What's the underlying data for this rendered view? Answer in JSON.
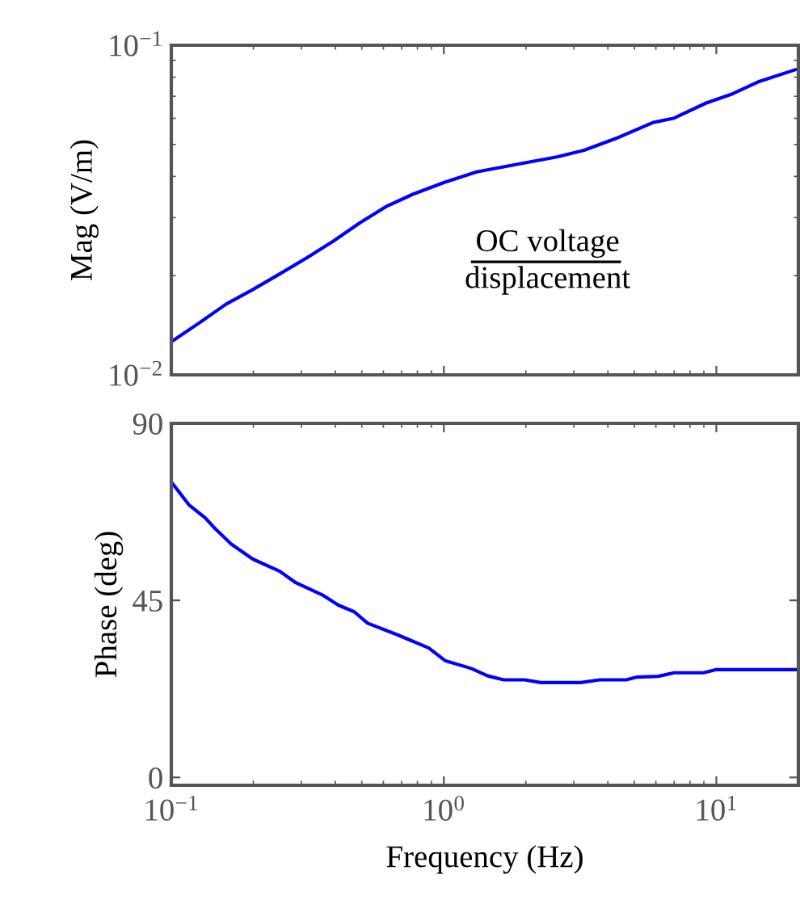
{
  "chart_data": [
    {
      "type": "line",
      "ylabel": "Mag (V/m)",
      "log": "xy",
      "xlim": [
        0.1,
        20
      ],
      "ylim": [
        0.01,
        0.1
      ],
      "xticks": [
        {
          "value": 0.1,
          "label": null
        },
        {
          "value": 1,
          "label": null
        },
        {
          "value": 10,
          "label": null
        }
      ],
      "yticks": [
        {
          "value": 0.01,
          "label": "10$^{−2}$"
        },
        {
          "value": 0.1,
          "label": "10$^{−1}$"
        }
      ],
      "tick_labels": "y",
      "annotations": [
        "OC voltage",
        "displacement"
      ],
      "x": [
        0.1,
        0.127,
        0.159,
        0.198,
        0.249,
        0.313,
        0.392,
        0.491,
        0.614,
        0.769,
        1.0,
        1.32,
        1.9,
        2.62,
        3.27,
        4.27,
        5.86,
        7.0,
        9.18,
        11.5,
        14.4,
        19.5
      ],
      "series": [
        {
          "color": "#0000ff",
          "values": [
            0.0126,
            0.0144,
            0.0164,
            0.0181,
            0.0202,
            0.0226,
            0.0254,
            0.0289,
            0.0324,
            0.0353,
            0.0383,
            0.0413,
            0.0437,
            0.0459,
            0.048,
            0.0521,
            0.0583,
            0.0601,
            0.0668,
            0.0713,
            0.0777,
            0.0843
          ]
        }
      ]
    },
    {
      "type": "line",
      "xlabel": "Frequency (Hz)",
      "ylabel": "Phase (deg)",
      "log": "x",
      "xlim": [
        0.1,
        20
      ],
      "ylim": [
        -2,
        90
      ],
      "xticks": [
        {
          "value": 0.1,
          "label": "10$^{−1}$"
        },
        {
          "value": 1,
          "label": "10$^{0}$"
        },
        {
          "value": 10,
          "label": "10$^{1}$"
        }
      ],
      "yticks": [
        0,
        45,
        90
      ],
      "x": [
        0.1,
        0.116,
        0.133,
        0.145,
        0.166,
        0.199,
        0.25,
        0.286,
        0.358,
        0.41,
        0.469,
        0.525,
        0.673,
        0.881,
        1.01,
        1.26,
        1.45,
        1.66,
        1.98,
        2.27,
        3.18,
        3.73,
        4.67,
        5.11,
        6.12,
        7.0,
        8.98,
        10.0,
        19.5
      ],
      "series": [
        {
          "color": "#0000ff",
          "values": [
            75.1,
            69.3,
            66.0,
            63.2,
            59.3,
            55.5,
            52.4,
            49.5,
            46.4,
            43.8,
            42.1,
            39.2,
            36.3,
            32.9,
            29.7,
            27.7,
            25.8,
            24.8,
            24.8,
            24.1,
            24.1,
            24.8,
            24.8,
            25.5,
            25.7,
            26.6,
            26.6,
            27.4,
            27.4
          ]
        }
      ]
    }
  ]
}
